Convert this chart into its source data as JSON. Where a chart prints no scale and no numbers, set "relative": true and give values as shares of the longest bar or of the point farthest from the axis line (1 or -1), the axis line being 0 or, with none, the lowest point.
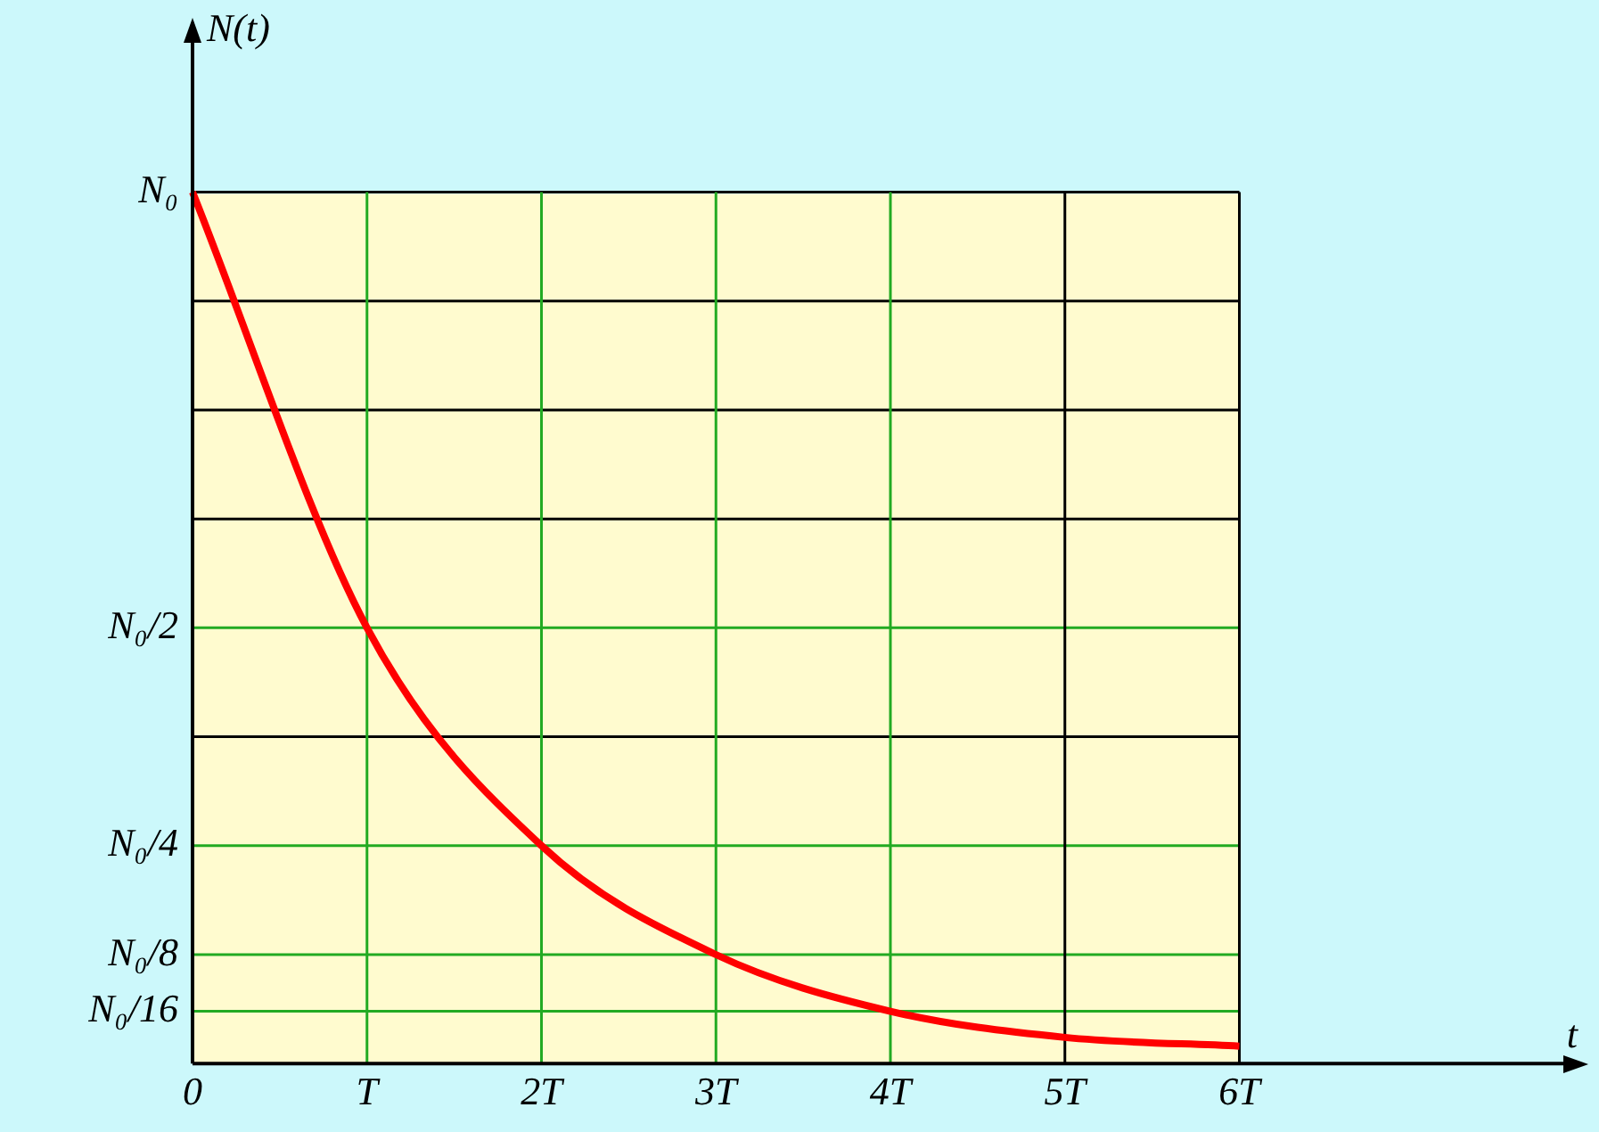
{
  "chart_data": {
    "type": "line",
    "annotations": [
      "t"
    ],
    "ylabel": "N(t)",
    "relative": true,
    "categories": [
      "0",
      "T",
      "2T",
      "3T",
      "4T",
      "5T",
      "6T"
    ],
    "series": [
      {
        "color": "#ff0000",
        "values": [
          1,
          0.5,
          0.25,
          0.125,
          0.06,
          0.03,
          0.02
        ]
      }
    ],
    "ref_lines": [
      {
        "axis": "y",
        "value": 0.06,
        "label": "N₀/16",
        "color": "#22aa22"
      },
      {
        "axis": "y",
        "value": 0.125,
        "label": "N₀/8",
        "color": "#22aa22"
      },
      {
        "axis": "y",
        "value": 0.25,
        "label": "N₀/4",
        "color": "#22aa22"
      },
      {
        "axis": "y",
        "value": 0.375,
        "label": null,
        "color": "#000000"
      },
      {
        "axis": "y",
        "value": 0.5,
        "label": "N₀/2",
        "color": "#22aa22"
      },
      {
        "axis": "y",
        "value": 0.625,
        "label": null,
        "color": "#000000"
      },
      {
        "axis": "y",
        "value": 0.75,
        "label": null,
        "color": "#000000"
      },
      {
        "axis": "y",
        "value": 0.875,
        "label": null,
        "color": "#000000"
      },
      {
        "axis": "y",
        "value": 1,
        "label": "N₀",
        "color": "#000000"
      },
      {
        "axis": "x",
        "value": "T",
        "label": null,
        "color": "#22aa22"
      },
      {
        "axis": "x",
        "value": "2T",
        "label": null,
        "color": "#22aa22"
      },
      {
        "axis": "x",
        "value": "3T",
        "label": null,
        "color": "#22aa22"
      },
      {
        "axis": "x",
        "value": "4T",
        "label": null,
        "color": "#22aa22"
      },
      {
        "axis": "x",
        "value": "5T",
        "label": null,
        "color": "#000000"
      },
      {
        "axis": "x",
        "value": "6T",
        "label": null,
        "color": "#000000"
      }
    ],
    "legend": false,
    "marker": "none",
    "line_style": "solid"
  }
}
